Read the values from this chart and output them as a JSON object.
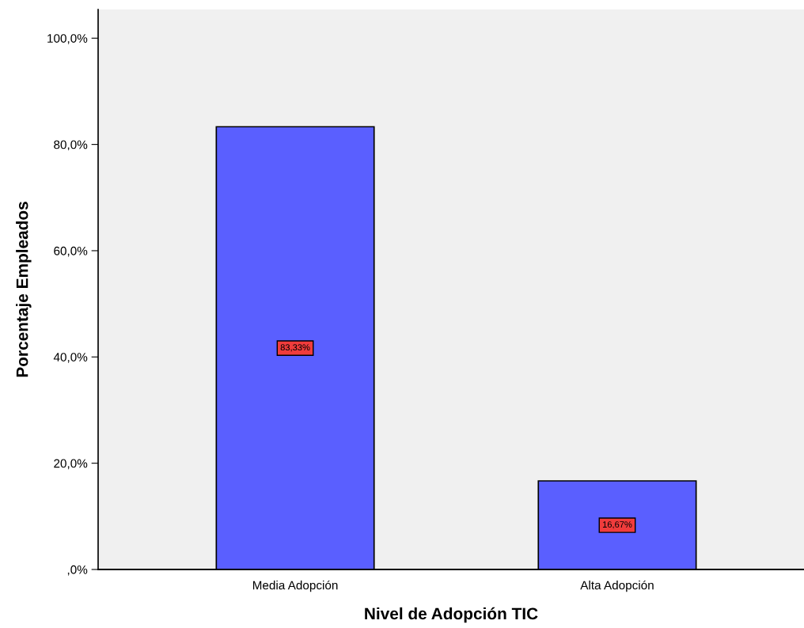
{
  "chart_data": {
    "type": "bar",
    "xlabel": "Nivel de Adopción TIC",
    "ylabel": "Porcentaje Empleados",
    "categories": [
      "Media Adopción",
      "Alta Adopción"
    ],
    "values": [
      83.33,
      16.67
    ],
    "value_labels": [
      "83,33%",
      "16,67%"
    ],
    "color": "#5a5fff",
    "ylim": [
      0,
      105.4
    ],
    "yticks": [
      {
        "value": 0,
        "label": ",0%"
      },
      {
        "value": 20,
        "label": "20,0%"
      },
      {
        "value": 40,
        "label": "40,0%"
      },
      {
        "value": 60,
        "label": "60,0%"
      },
      {
        "value": 80,
        "label": "80,0%"
      },
      {
        "value": 100,
        "label": "100,0%"
      }
    ],
    "grid": false
  }
}
